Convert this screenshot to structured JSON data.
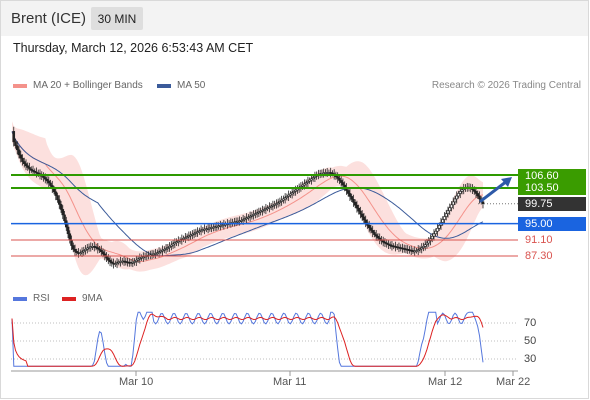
{
  "header": {
    "instrument": "Brent (ICE)",
    "timeframe": "30 MIN"
  },
  "datetime": "Thursday, March 12, 2026 6:53:43 AM CET",
  "legend": {
    "bollinger": "MA 20 + Bollinger Bands",
    "ma50": "MA 50",
    "copyright": "Research © 2026 Trading Central",
    "rsi": "RSI",
    "ma9": "9MA"
  },
  "colors": {
    "bollinger": "#f4928b",
    "ma50": "#3b5b9a",
    "resistance": "#2e9a00",
    "current": "#333333",
    "pivot": "#1a64e0",
    "support": "#d9534f",
    "rsi": "#5577dd",
    "ma9": "#dd2222",
    "arrow": "#2e5aa8"
  },
  "levels": {
    "r2": "106.60",
    "r1": "103.50",
    "last": "99.75",
    "pivot": "95.00",
    "s1": "91.10",
    "s2": "87.30"
  },
  "rsi_ticks": [
    "70",
    "50",
    "30"
  ],
  "x_ticks": [
    "Mar 10",
    "Mar 11",
    "Mar 12",
    "Mar 22"
  ],
  "chart_data": {
    "type": "candlestick",
    "price_levels": [
      106.6,
      103.5,
      99.75,
      95.0,
      91.1,
      87.3
    ],
    "rsi_levels": [
      70,
      50,
      30
    ],
    "x_labels": [
      "Mar 10",
      "Mar 11",
      "Mar 12",
      "Mar 22"
    ],
    "closes": [
      117.0,
      114.5,
      113.6,
      112.6,
      111.4,
      110.6,
      109.8,
      109.3,
      108.8,
      108.4,
      108.0,
      107.7,
      107.5,
      107.3,
      107.1,
      106.9,
      106.6,
      106.3,
      106.0,
      105.6,
      105.2,
      104.7,
      104.1,
      103.4,
      102.6,
      101.7,
      100.7,
      99.6,
      98.4,
      97.1,
      95.7,
      94.2,
      92.6,
      91.1,
      89.8,
      88.9,
      88.4,
      88.1,
      88.0,
      88.1,
      88.3,
      88.6,
      88.9,
      89.2,
      89.4,
      89.5,
      89.6,
      89.5,
      89.3,
      89.0,
      88.7,
      88.3,
      87.8,
      87.3,
      86.8,
      86.3,
      85.9,
      85.6,
      85.4,
      85.5,
      85.7,
      85.9,
      86.0,
      86.1,
      86.0,
      85.9,
      85.8,
      85.7,
      85.7,
      85.8,
      86.0,
      86.3,
      86.6,
      86.8,
      87.0,
      87.1,
      87.3,
      87.4,
      87.5,
      87.6,
      87.7,
      87.8,
      87.9,
      88.1,
      88.3,
      88.5,
      88.7,
      88.9,
      89.1,
      89.3,
      89.6,
      89.9,
      90.2,
      90.5,
      90.7,
      90.9,
      91.1,
      91.3,
      91.5,
      91.7,
      91.9,
      92.1,
      92.3,
      92.5,
      92.7,
      92.9,
      93.1,
      93.3,
      93.5,
      93.6,
      93.7,
      93.8,
      93.9,
      94.0,
      94.1,
      94.2,
      94.3,
      94.4,
      94.5,
      94.6,
      94.7,
      94.8,
      94.9,
      95.0,
      95.1,
      95.2,
      95.3,
      95.4,
      95.5,
      95.6,
      95.7,
      95.8,
      96.0,
      96.2,
      96.4,
      96.6,
      96.8,
      97.0,
      97.2,
      97.4,
      97.6,
      97.8,
      98.0,
      98.2,
      98.4,
      98.6,
      98.8,
      99.0,
      99.2,
      99.4,
      99.6,
      99.8,
      100.0,
      100.3,
      100.6,
      100.9,
      101.2,
      101.5,
      101.8,
      102.1,
      102.4,
      102.7,
      103.0,
      103.3,
      103.6,
      103.9,
      104.2,
      104.5,
      104.8,
      105.1,
      105.4,
      105.7,
      106.0,
      106.3,
      106.6,
      106.8,
      106.9,
      107.0,
      107.1,
      107.2,
      107.2,
      107.2,
      107.1,
      106.9,
      106.6,
      106.2,
      105.8,
      105.3,
      104.8,
      104.2,
      103.6,
      102.9,
      102.2,
      101.5,
      100.8,
      100.1,
      99.4,
      98.7,
      98.0,
      97.3,
      96.6,
      95.9,
      95.2,
      94.6,
      94.0,
      93.4,
      92.9,
      92.4,
      92.0,
      91.6,
      91.2,
      90.9,
      90.6,
      90.4,
      90.2,
      90.0,
      89.8,
      89.7,
      89.6,
      89.5,
      89.4,
      89.3,
      89.2,
      89.1,
      89.0,
      88.9,
      88.8,
      88.7,
      88.6,
      88.5,
      88.5,
      88.6,
      88.8,
      89.0,
      89.3,
      89.6,
      90.0,
      90.4,
      90.9,
      91.4,
      92.0,
      92.6,
      93.2,
      93.9,
      94.6,
      95.3,
      96.0,
      96.7,
      97.4,
      98.1,
      98.8,
      99.5,
      100.2,
      100.9,
      101.6,
      102.2,
      102.7,
      103.1,
      103.4,
      103.6,
      103.7,
      103.6,
      103.4,
      103.1,
      102.7,
      102.2,
      101.6,
      100.9,
      100.2,
      99.75
    ]
  }
}
